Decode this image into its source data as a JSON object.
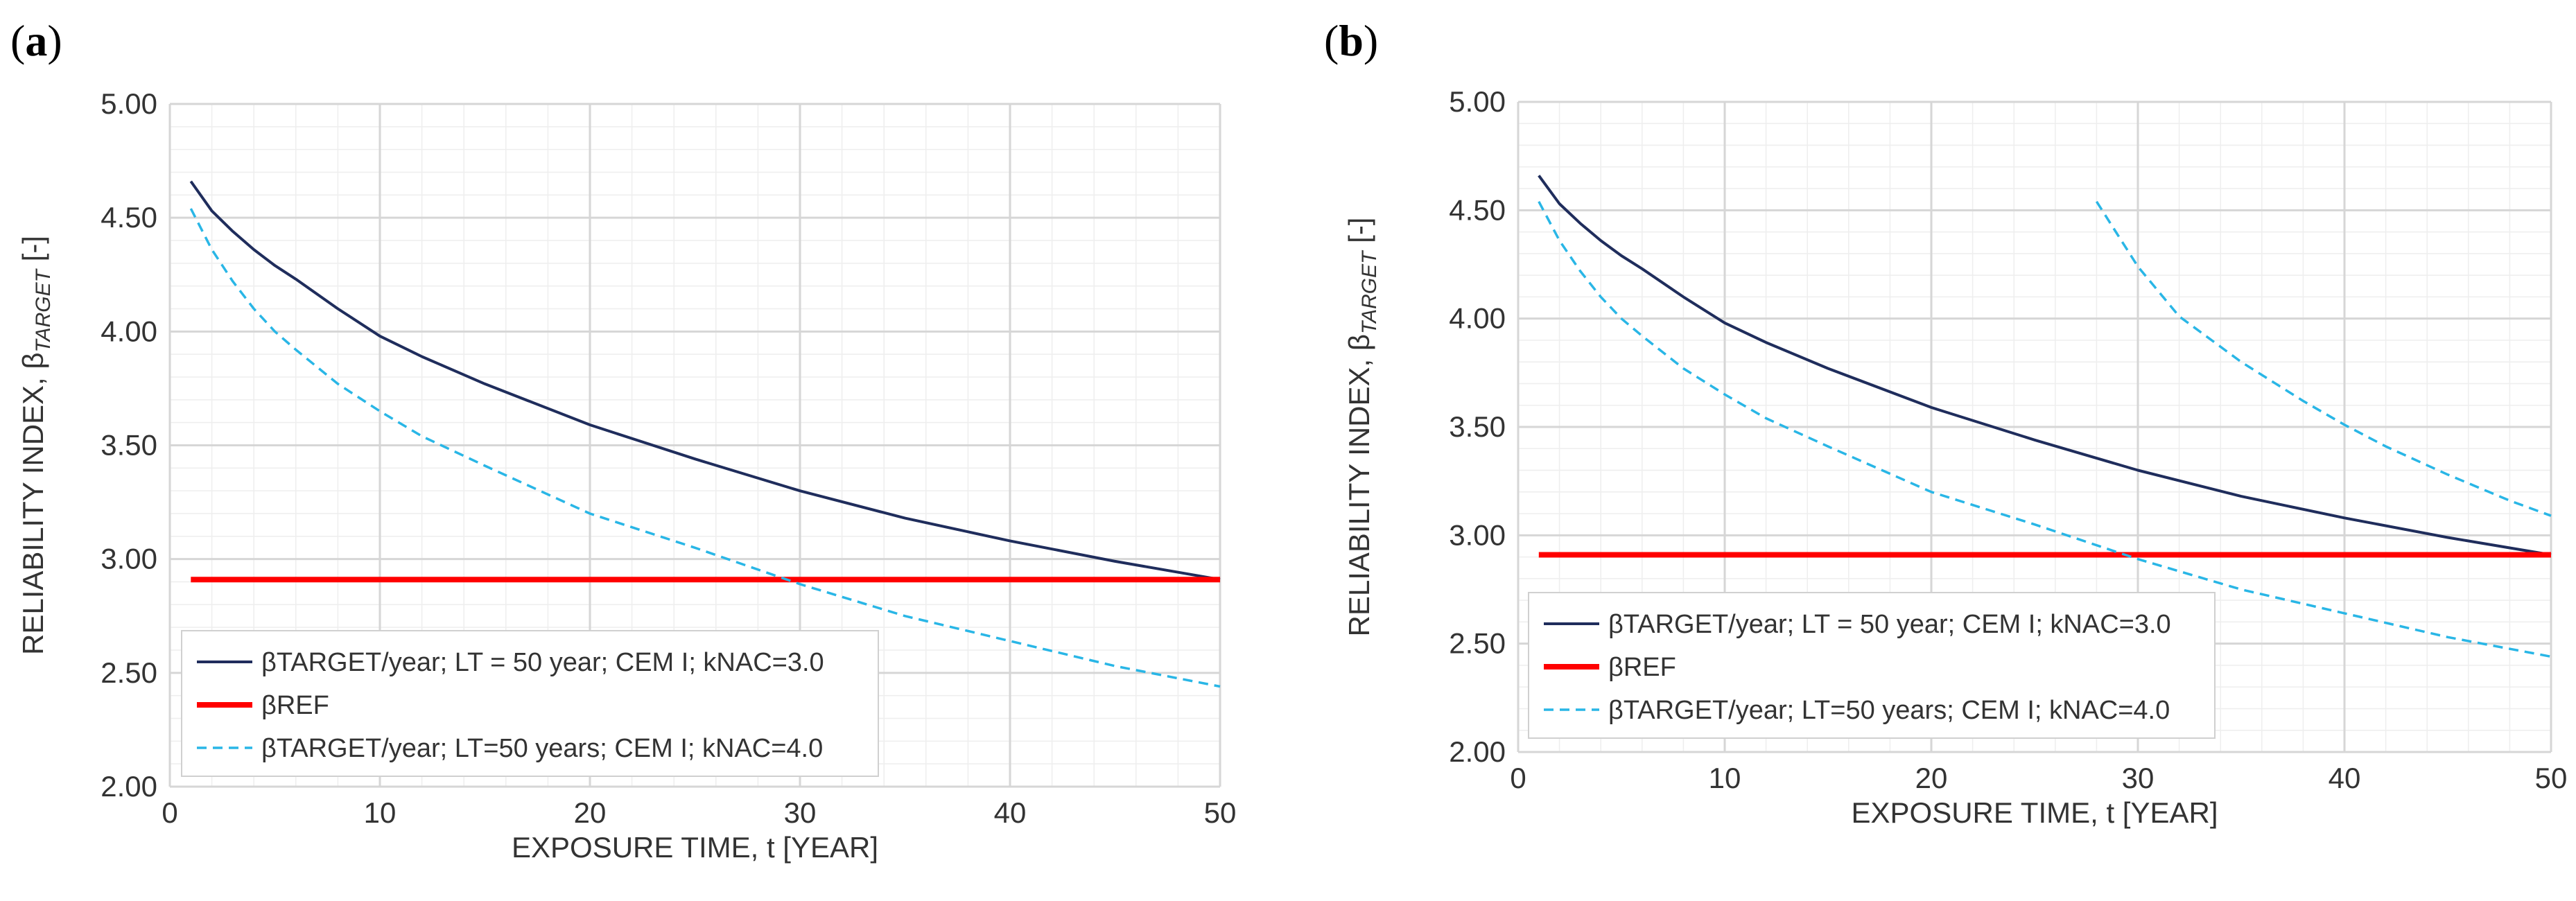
{
  "colors": {
    "target_cem": "#1f2d5c",
    "ref": "#ff0000",
    "target_knac4": "#29b6e6",
    "grid_major": "#d6d6d6",
    "grid_minor": "#eeeeee"
  },
  "chart_data": [
    {
      "type": "line",
      "panel_label": "(a)",
      "panel_letter": "a",
      "xlabel": "EXPOSURE TIME, t [YEAR]",
      "ylabel_prefix": "RELIABILITY INDEX, β",
      "ylabel_sub": "TARGET",
      "ylabel_suffix": " [-]",
      "xlim": [
        0,
        50
      ],
      "ylim": [
        2.0,
        5.0
      ],
      "x_ticks": [
        "0",
        "10",
        "20",
        "30",
        "40",
        "50"
      ],
      "y_ticks": [
        "2.00",
        "2.50",
        "3.00",
        "3.50",
        "4.00",
        "4.50",
        "5.00"
      ],
      "grid": true,
      "legend_position": "bottom-left",
      "series": [
        {
          "name": "βTARGET/year; LT = 50 year; CEM I; kNAC=3.0",
          "style": "solid",
          "x": [
            1,
            2,
            3,
            4,
            5,
            6,
            8,
            10,
            12,
            15,
            20,
            25,
            30,
            35,
            40,
            45,
            50
          ],
          "y": [
            4.66,
            4.53,
            4.44,
            4.36,
            4.29,
            4.23,
            4.1,
            3.98,
            3.89,
            3.77,
            3.59,
            3.44,
            3.3,
            3.18,
            3.08,
            2.99,
            2.91
          ]
        },
        {
          "name": "βREF",
          "style": "thick",
          "x": [
            1,
            50
          ],
          "y": [
            2.91,
            2.91
          ]
        },
        {
          "name": "βTARGET/year; LT=50 years; CEM I; kNAC=4.0",
          "style": "dashed",
          "x": [
            1,
            2,
            3,
            4,
            5,
            6,
            8,
            10,
            12,
            15,
            20,
            25,
            30,
            35,
            40,
            45,
            50
          ],
          "y": [
            4.54,
            4.36,
            4.22,
            4.1,
            4.0,
            3.92,
            3.77,
            3.65,
            3.54,
            3.41,
            3.2,
            3.05,
            2.89,
            2.75,
            2.64,
            2.53,
            2.44
          ]
        }
      ]
    },
    {
      "type": "line",
      "panel_label": "(b)",
      "panel_letter": "b",
      "xlabel": "EXPOSURE TIME, t [YEAR]",
      "ylabel_prefix": "RELIABILITY INDEX,  β",
      "ylabel_sub": "TARGET",
      "ylabel_suffix": " [-]",
      "xlim": [
        0,
        50
      ],
      "ylim": [
        2.0,
        5.0
      ],
      "x_ticks": [
        "0",
        "10",
        "20",
        "30",
        "40",
        "50"
      ],
      "y_ticks": [
        "2.00",
        "2.50",
        "3.00",
        "3.50",
        "4.00",
        "4.50",
        "5.00"
      ],
      "grid": true,
      "legend_position": "bottom-left",
      "series": [
        {
          "name": "βTARGET/year; LT = 50 year; CEM I; kNAC=3.0",
          "style": "solid",
          "x": [
            1,
            2,
            3,
            4,
            5,
            6,
            8,
            10,
            12,
            15,
            20,
            25,
            30,
            35,
            40,
            45,
            50
          ],
          "y": [
            4.66,
            4.53,
            4.44,
            4.36,
            4.29,
            4.23,
            4.1,
            3.98,
            3.89,
            3.77,
            3.59,
            3.44,
            3.3,
            3.18,
            3.08,
            2.99,
            2.91
          ]
        },
        {
          "name": "βREF",
          "style": "thick",
          "x": [
            1,
            50
          ],
          "y": [
            2.91,
            2.91
          ]
        },
        {
          "name": "βTARGET/year; LT=50 years; CEM I; kNAC=4.0",
          "style": "dashed",
          "x": [
            1,
            2,
            3,
            4,
            5,
            6,
            8,
            10,
            12,
            15,
            20,
            25,
            30,
            35,
            40,
            45,
            50
          ],
          "y": [
            4.54,
            4.36,
            4.22,
            4.1,
            4.0,
            3.92,
            3.77,
            3.65,
            3.54,
            3.41,
            3.2,
            3.05,
            2.89,
            2.75,
            2.64,
            2.53,
            2.44
          ]
        },
        {
          "name": "",
          "style": "dashed",
          "x": [
            28,
            30,
            32,
            35,
            38,
            40,
            42,
            45,
            48,
            50
          ],
          "y": [
            4.54,
            4.24,
            4.01,
            3.8,
            3.62,
            3.51,
            3.41,
            3.28,
            3.16,
            3.09
          ]
        }
      ]
    }
  ]
}
